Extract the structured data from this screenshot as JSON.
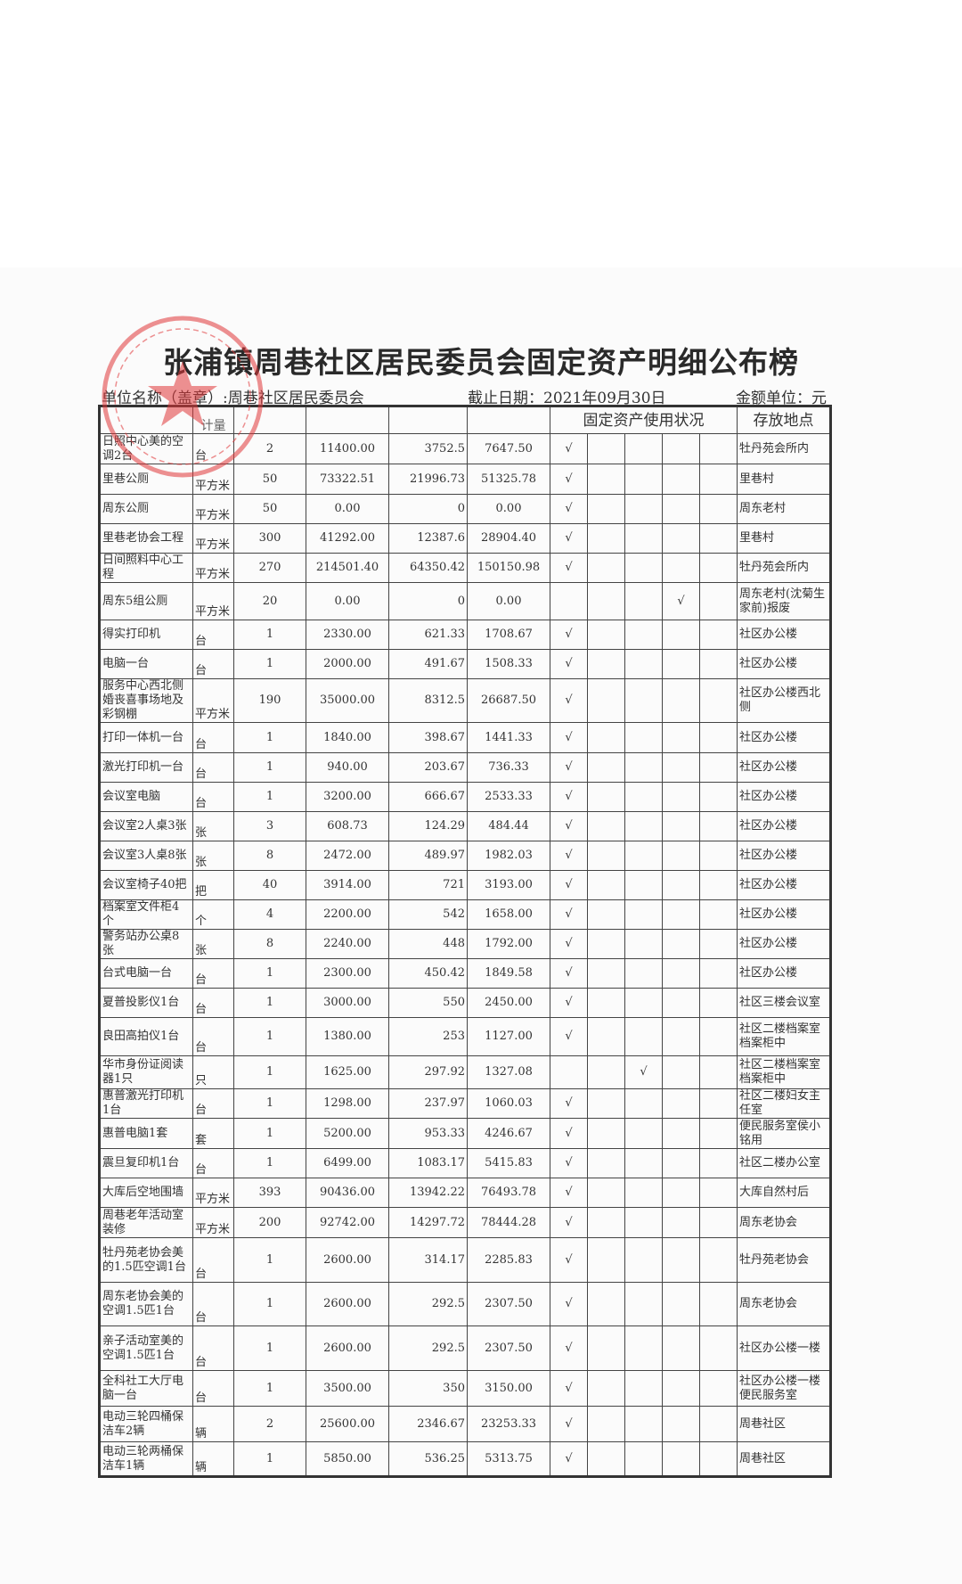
{
  "title": "张浦镇周巷社区居民委员会固定资产明细公布榜",
  "meta": {
    "unit_name": "单位名称（盖章）:周巷社区居民委员会",
    "cutoff_date": "截止日期：2021年09月30日",
    "currency_unit": "金额单位：元"
  },
  "header": {
    "unit_partial": "计量",
    "status_group": "固定资产使用状况",
    "location": "存放地点"
  },
  "colors": {
    "stamp": "#e0373a",
    "border": "#444444"
  },
  "rows": [
    {
      "name": "日照中心美的空调2台",
      "unit": "台",
      "qty": "2",
      "original": "11400.00",
      "depreciation": "3752.5",
      "net": "7647.50",
      "status": 0,
      "mark": "√",
      "location": "牡丹苑会所内"
    },
    {
      "name": "里巷公厕",
      "unit": "平方米",
      "qty": "50",
      "original": "73322.51",
      "depreciation": "21996.73",
      "net": "51325.78",
      "status": 0,
      "mark": "√",
      "location": "里巷村"
    },
    {
      "name": "周东公厕",
      "unit": "平方米",
      "qty": "50",
      "original": "0.00",
      "depreciation": "0",
      "net": "0.00",
      "status": 0,
      "mark": "√",
      "location": "周东老村"
    },
    {
      "name": "里巷老协会工程",
      "unit": "平方米",
      "qty": "300",
      "original": "41292.00",
      "depreciation": "12387.6",
      "net": "28904.40",
      "status": 0,
      "mark": "√",
      "location": "里巷村"
    },
    {
      "name": "日间照料中心工程",
      "unit": "平方米",
      "qty": "270",
      "original": "214501.40",
      "depreciation": "64350.42",
      "net": "150150.98",
      "status": 0,
      "mark": "√",
      "location": "牡丹苑会所内"
    },
    {
      "name": "周东5组公厕",
      "unit": "平方米",
      "qty": "20",
      "original": "0.00",
      "depreciation": "0",
      "net": "0.00",
      "status": 3,
      "mark": "√",
      "location": "周东老村(沈菊生家前)报废"
    },
    {
      "name": "得实打印机",
      "unit": "台",
      "qty": "1",
      "original": "2330.00",
      "depreciation": "621.33",
      "net": "1708.67",
      "status": 0,
      "mark": "√",
      "location": "社区办公楼"
    },
    {
      "name": "电脑一台",
      "unit": "台",
      "qty": "1",
      "original": "2000.00",
      "depreciation": "491.67",
      "net": "1508.33",
      "status": 0,
      "mark": "√",
      "location": "社区办公楼"
    },
    {
      "name": "服务中心西北侧婚丧喜事场地及彩钢棚",
      "unit": "平方米",
      "qty": "190",
      "original": "35000.00",
      "depreciation": "8312.5",
      "net": "26687.50",
      "status": 0,
      "mark": "√",
      "location": "社区办公楼西北侧"
    },
    {
      "name": "打印一体机一台",
      "unit": "台",
      "qty": "1",
      "original": "1840.00",
      "depreciation": "398.67",
      "net": "1441.33",
      "status": 0,
      "mark": "√",
      "location": "社区办公楼"
    },
    {
      "name": "激光打印机一台",
      "unit": "台",
      "qty": "1",
      "original": "940.00",
      "depreciation": "203.67",
      "net": "736.33",
      "status": 0,
      "mark": "√",
      "location": "社区办公楼"
    },
    {
      "name": "会议室电脑",
      "unit": "台",
      "qty": "1",
      "original": "3200.00",
      "depreciation": "666.67",
      "net": "2533.33",
      "status": 0,
      "mark": "√",
      "location": "社区办公楼"
    },
    {
      "name": "会议室2人桌3张",
      "unit": "张",
      "qty": "3",
      "original": "608.73",
      "depreciation": "124.29",
      "net": "484.44",
      "status": 0,
      "mark": "√",
      "location": "社区办公楼"
    },
    {
      "name": "会议室3人桌8张",
      "unit": "张",
      "qty": "8",
      "original": "2472.00",
      "depreciation": "489.97",
      "net": "1982.03",
      "status": 0,
      "mark": "√",
      "location": "社区办公楼"
    },
    {
      "name": "会议室椅子40把",
      "unit": "把",
      "qty": "40",
      "original": "3914.00",
      "depreciation": "721",
      "net": "3193.00",
      "status": 0,
      "mark": "√",
      "location": "社区办公楼"
    },
    {
      "name": "档案室文件柜4个",
      "unit": "个",
      "qty": "4",
      "original": "2200.00",
      "depreciation": "542",
      "net": "1658.00",
      "status": 0,
      "mark": "√",
      "location": "社区办公楼"
    },
    {
      "name": "警务站办公桌8张",
      "unit": "张",
      "qty": "8",
      "original": "2240.00",
      "depreciation": "448",
      "net": "1792.00",
      "status": 0,
      "mark": "√",
      "location": "社区办公楼"
    },
    {
      "name": "台式电脑一台",
      "unit": "台",
      "qty": "1",
      "original": "2300.00",
      "depreciation": "450.42",
      "net": "1849.58",
      "status": 0,
      "mark": "√",
      "location": "社区办公楼"
    },
    {
      "name": "夏普投影仪1台",
      "unit": "台",
      "qty": "1",
      "original": "3000.00",
      "depreciation": "550",
      "net": "2450.00",
      "status": 0,
      "mark": "√",
      "location": "社区三楼会议室"
    },
    {
      "name": "良田高拍仪1台",
      "unit": "台",
      "qty": "1",
      "original": "1380.00",
      "depreciation": "253",
      "net": "1127.00",
      "status": 0,
      "mark": "√",
      "location": "社区二楼档案室档案柜中"
    },
    {
      "name": "华市身份证阅读器1只",
      "unit": "只",
      "qty": "1",
      "original": "1625.00",
      "depreciation": "297.92",
      "net": "1327.08",
      "status": 2,
      "mark": "√",
      "location": "社区二楼档案室档案柜中"
    },
    {
      "name": "惠普激光打印机1台",
      "unit": "台",
      "qty": "1",
      "original": "1298.00",
      "depreciation": "237.97",
      "net": "1060.03",
      "status": 0,
      "mark": "√",
      "location": "社区二楼妇女主任室"
    },
    {
      "name": "惠普电脑1套",
      "unit": "套",
      "qty": "1",
      "original": "5200.00",
      "depreciation": "953.33",
      "net": "4246.67",
      "status": 0,
      "mark": "√",
      "location": "便民服务室侯小铭用"
    },
    {
      "name": "震旦复印机1台",
      "unit": "台",
      "qty": "1",
      "original": "6499.00",
      "depreciation": "1083.17",
      "net": "5415.83",
      "status": 0,
      "mark": "√",
      "location": "社区二楼办公室"
    },
    {
      "name": "大库后空地围墙",
      "unit": "平方米",
      "qty": "393",
      "original": "90436.00",
      "depreciation": "13942.22",
      "net": "76493.78",
      "status": 0,
      "mark": "√",
      "location": "大库自然村后"
    },
    {
      "name": "周巷老年活动室装修",
      "unit": "平方米",
      "qty": "200",
      "original": "92742.00",
      "depreciation": "14297.72",
      "net": "78444.28",
      "status": 0,
      "mark": "√",
      "location": "周东老协会"
    },
    {
      "name": "牡丹苑老协会美的1.5匹空调1台",
      "unit": "台",
      "qty": "1",
      "original": "2600.00",
      "depreciation": "314.17",
      "net": "2285.83",
      "status": 0,
      "mark": "√",
      "location": "牡丹苑老协会"
    },
    {
      "name": "周东老协会美的空调1.5匹1台",
      "unit": "台",
      "qty": "1",
      "original": "2600.00",
      "depreciation": "292.5",
      "net": "2307.50",
      "status": 0,
      "mark": "√",
      "location": "周东老协会"
    },
    {
      "name": "亲子活动室美的空调1.5匹1台",
      "unit": "台",
      "qty": "1",
      "original": "2600.00",
      "depreciation": "292.5",
      "net": "2307.50",
      "status": 0,
      "mark": "√",
      "location": "社区办公楼一楼"
    },
    {
      "name": "全科社工大厅电脑一台",
      "unit": "台",
      "qty": "1",
      "original": "3500.00",
      "depreciation": "350",
      "net": "3150.00",
      "status": 0,
      "mark": "√",
      "location": "社区办公楼一楼便民服务室"
    },
    {
      "name": "电动三轮四桶保洁车2辆",
      "unit": "辆",
      "qty": "2",
      "original": "25600.00",
      "depreciation": "2346.67",
      "net": "23253.33",
      "status": 0,
      "mark": "√",
      "location": "周巷社区"
    },
    {
      "name": "电动三轮两桶保洁车1辆",
      "unit": "辆",
      "qty": "1",
      "original": "5850.00",
      "depreciation": "536.25",
      "net": "5313.75",
      "status": 0,
      "mark": "√",
      "location": "周巷社区"
    }
  ]
}
